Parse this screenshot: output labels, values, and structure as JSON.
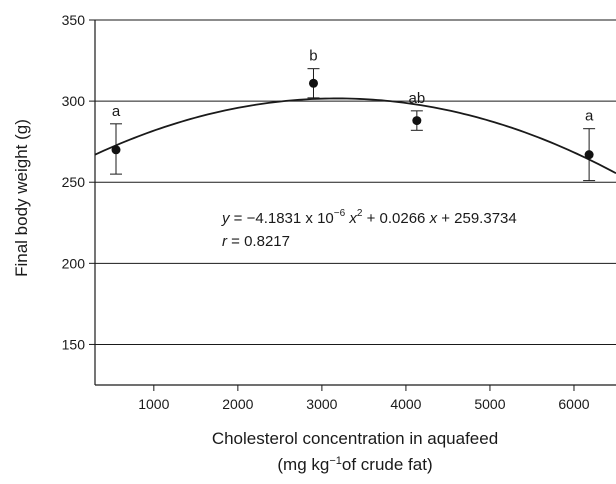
{
  "chart_data": {
    "type": "scatter",
    "title": "",
    "xlabel": "Cholesterol concentration in aquafeed",
    "xlabel_line2": {
      "pre": "(mg kg",
      "sup": "−1",
      "post": "of crude fat)"
    },
    "ylabel": "Final body weight (g)",
    "xlim": [
      300,
      6500
    ],
    "ylim": [
      125,
      350
    ],
    "xticks": [
      1000,
      2000,
      3000,
      4000,
      5000,
      6000
    ],
    "yticks": [
      150,
      200,
      250,
      300,
      350
    ],
    "grid": "horizontal",
    "series": [
      {
        "points": [
          {
            "x": 550,
            "y": 270,
            "err_low": 255,
            "err_high": 286,
            "letter": "a"
          },
          {
            "x": 2900,
            "y": 311,
            "err_low": 302,
            "err_high": 320,
            "letter": "b"
          },
          {
            "x": 4130,
            "y": 288,
            "err_low": 282,
            "err_high": 294,
            "letter": "ab"
          },
          {
            "x": 6180,
            "y": 267,
            "err_low": 251,
            "err_high": 283,
            "letter": "a"
          }
        ]
      }
    ],
    "fit": {
      "a": -4.1831e-06,
      "b": 0.0266,
      "c": 259.3734
    },
    "equation": {
      "y": "y",
      "eq_part1": " = −4.1831 x 10",
      "exp": "−6",
      "x1": " x",
      "sq": "2",
      "eq_part2": " + 0.0266 ",
      "x2": "x",
      "eq_part3": " + 259.3734"
    },
    "r_text": {
      "r": "r",
      "value": " = 0.8217"
    }
  }
}
